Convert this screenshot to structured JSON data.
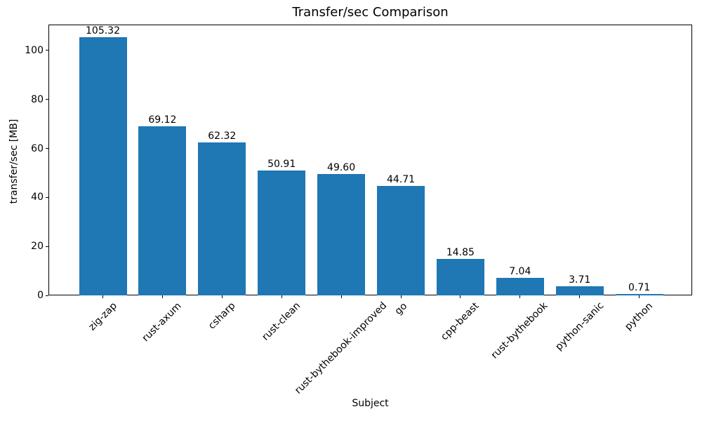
{
  "chart_data": {
    "type": "bar",
    "title": "Transfer/sec Comparison",
    "xlabel": "Subject",
    "ylabel": "transfer/sec [MB]",
    "categories": [
      "zig-zap",
      "rust-axum",
      "csharp",
      "rust-clean",
      "rust-bythebook-improved",
      "go",
      "cpp-beast",
      "rust-bythebook",
      "python-sanic",
      "python"
    ],
    "values": [
      105.32,
      69.12,
      62.32,
      50.91,
      49.6,
      44.71,
      14.85,
      7.04,
      3.71,
      0.71
    ],
    "bar_labels": [
      "105.32",
      "69.12",
      "62.32",
      "50.91",
      "49.60",
      "44.71",
      "14.85",
      "7.04",
      "3.71",
      "0.71"
    ],
    "yticks": [
      0,
      20,
      40,
      60,
      80,
      100
    ],
    "ylim": [
      0,
      110.59
    ],
    "bar_color": "#1f77b4",
    "grid": false,
    "legend": null,
    "x_tick_rotation_deg": 45
  }
}
